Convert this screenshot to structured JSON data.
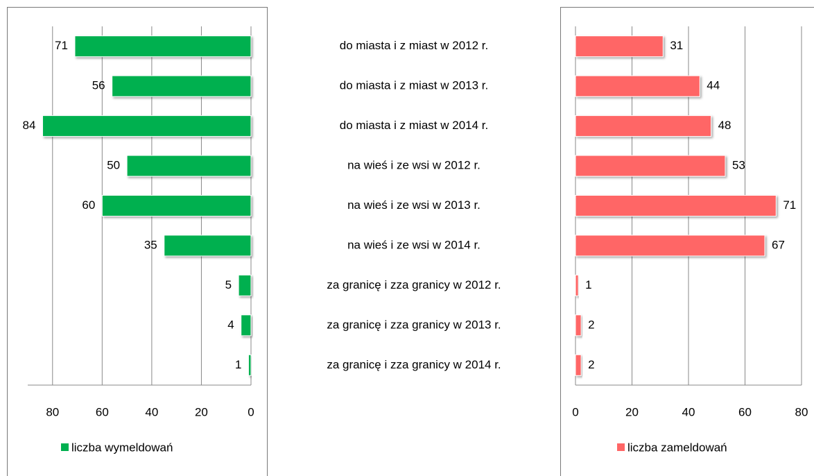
{
  "chart_data": [
    {
      "type": "bar",
      "orientation": "horizontal",
      "reversed": true,
      "categories": [
        "do miasta i z miast w 2012 r.",
        "do miasta i z miast w 2013 r.",
        "do miasta i z miast w 2014 r.",
        "na wieś i ze wsi w 2012 r.",
        "na wieś i ze wsi w 2013 r.",
        "na wieś i ze wsi w 2014 r.",
        "za granicę i zza granicy w 2012 r.",
        "za granicę i zza granicy w 2013 r.",
        "za granicę i zza granicy w 2014 r."
      ],
      "series": [
        {
          "name": "liczba wymeldowań",
          "color": "#00b050",
          "values": [
            71,
            56,
            84,
            50,
            60,
            35,
            5,
            4,
            1
          ]
        }
      ],
      "xlim": [
        0,
        90
      ],
      "xticks": [
        0,
        20,
        40,
        60,
        80
      ],
      "grid": true,
      "legend": "bottom"
    },
    {
      "type": "bar",
      "orientation": "horizontal",
      "reversed": false,
      "series": [
        {
          "name": "liczba zameldowań",
          "color": "#ff6666",
          "values": [
            31,
            44,
            48,
            53,
            71,
            67,
            1,
            2,
            2
          ]
        }
      ],
      "xlim": [
        0,
        80
      ],
      "xticks": [
        0,
        20,
        40,
        60,
        80
      ],
      "grid": true,
      "legend": "bottom"
    }
  ]
}
